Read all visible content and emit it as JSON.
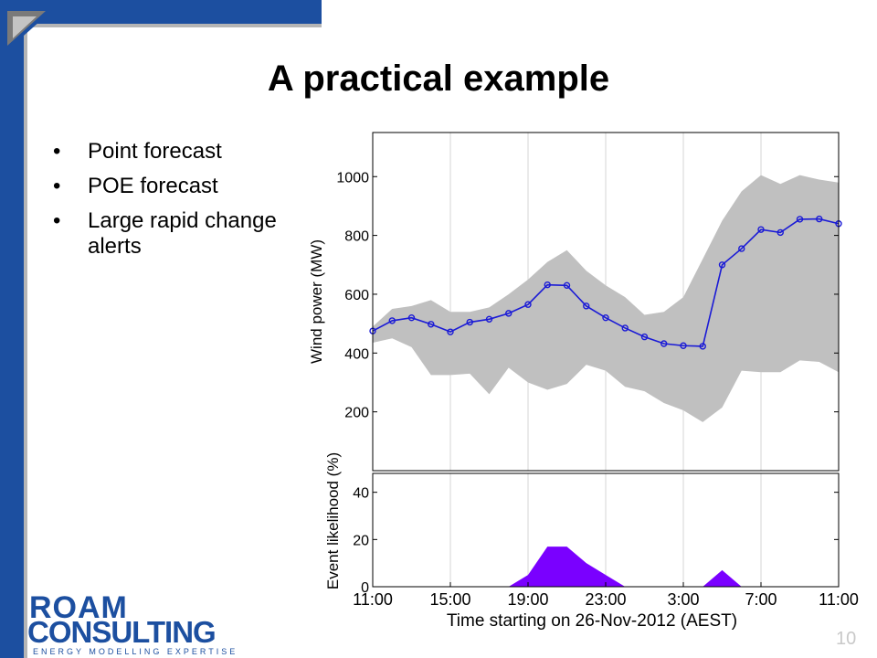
{
  "slide": {
    "title": "A practical example",
    "bullets": [
      "Point forecast",
      "POE forecast",
      "Large rapid change alerts"
    ],
    "page_number": "10"
  },
  "logo": {
    "line1": "ROAM",
    "line2": "CONSULTING",
    "tagline": "ENERGY MODELLING EXPERTISE"
  },
  "colors": {
    "accent_blue": "#1c4fa0",
    "band_gray": "#c0c0c0",
    "forecast_line": "#1a1ad6",
    "alert_fill": "#7a00ff"
  },
  "chart_data": [
    {
      "type": "line",
      "ylabel": "Wind power (MW)",
      "xlim": [
        0,
        24
      ],
      "ylim": [
        0,
        1150
      ],
      "yticks": [
        200,
        400,
        600,
        800,
        1000
      ],
      "grid": "vertical",
      "x": [
        0,
        1,
        2,
        3,
        4,
        5,
        6,
        7,
        8,
        9,
        10,
        11,
        12,
        13,
        14,
        15,
        16,
        17,
        18,
        19,
        20,
        21,
        22,
        23,
        24
      ],
      "series": [
        {
          "role": "point_forecast",
          "style": "line-with-circle-markers",
          "values": [
            475,
            510,
            520,
            498,
            472,
            505,
            515,
            535,
            565,
            632,
            630,
            560,
            520,
            485,
            455,
            432,
            425,
            423,
            700,
            755,
            820,
            810,
            855,
            856,
            840
          ]
        },
        {
          "role": "poe_band_upper",
          "style": "filled-band",
          "values": [
            490,
            550,
            560,
            580,
            540,
            540,
            555,
            600,
            650,
            710,
            750,
            680,
            630,
            590,
            530,
            540,
            590,
            720,
            850,
            950,
            1005,
            975,
            1005,
            990,
            980
          ]
        },
        {
          "role": "poe_band_lower",
          "style": "filled-band",
          "values": [
            435,
            450,
            420,
            325,
            325,
            330,
            260,
            350,
            300,
            275,
            295,
            360,
            340,
            285,
            270,
            230,
            205,
            165,
            215,
            340,
            335,
            335,
            375,
            370,
            335
          ]
        }
      ]
    },
    {
      "type": "area",
      "ylabel": "Event likelihood (%)",
      "xlabel": "Time starting on 26-Nov-2012 (AEST)",
      "xlim": [
        0,
        24
      ],
      "ylim": [
        0,
        48
      ],
      "yticks": [
        0,
        20,
        40
      ],
      "xtick_positions": [
        0,
        4,
        8,
        12,
        16,
        20,
        24
      ],
      "xtick_labels": [
        "11:00",
        "15:00",
        "19:00",
        "23:00",
        "3:00",
        "7:00",
        "11:00"
      ],
      "grid": "vertical",
      "x": [
        0,
        1,
        2,
        3,
        4,
        5,
        6,
        7,
        8,
        9,
        10,
        11,
        12,
        13,
        14,
        15,
        16,
        17,
        18,
        19,
        20,
        21,
        22,
        23,
        24
      ],
      "series": [
        {
          "role": "large_rapid_change_alert",
          "values": [
            0,
            0,
            0,
            0,
            0,
            0,
            0,
            0,
            5,
            17,
            17,
            10,
            5,
            0,
            0,
            0,
            0,
            0,
            7,
            0,
            0,
            0,
            0,
            0,
            0
          ]
        }
      ]
    }
  ]
}
